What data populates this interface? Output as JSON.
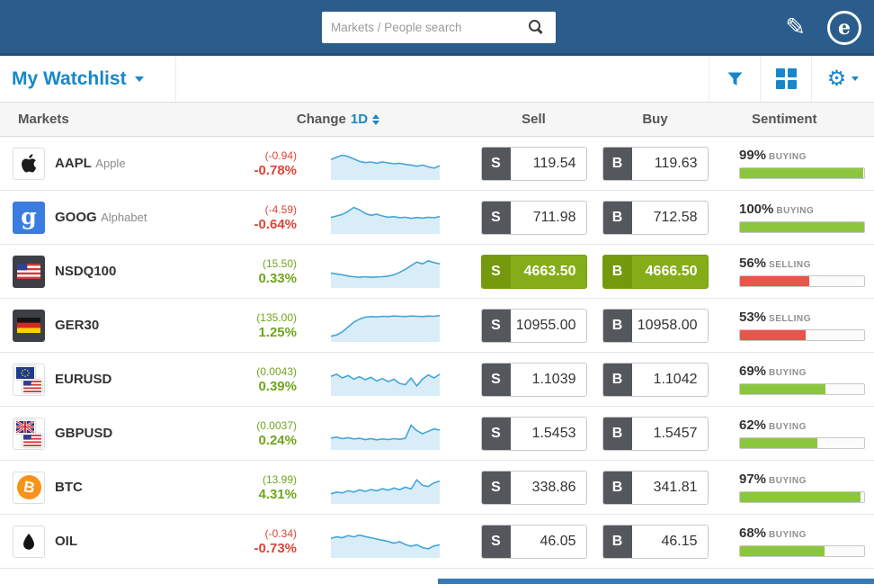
{
  "topbar": {
    "search_placeholder": "Markets / People search",
    "logo_letter": "e",
    "pencil_icon": "✎"
  },
  "toolbar": {
    "title": "My Watchlist"
  },
  "table": {
    "columns": {
      "markets": "Markets",
      "change": "Change",
      "period": "1D",
      "sell": "Sell",
      "buy": "Buy",
      "sentiment": "Sentiment"
    },
    "sell_tag": "S",
    "buy_tag": "B"
  },
  "colors": {
    "topbar_blue": "#2b5d8c",
    "accent_blue": "#1787c9",
    "green_text": "#6fa61c",
    "red_text": "#df4436",
    "trade_green": "#85ad18",
    "sentiment_green": "#8cc63e",
    "sentiment_red": "#e8554a",
    "spark_line": "#44a5d9",
    "spark_fill": "#d9edf8"
  },
  "rows": [
    {
      "symbol": "AAPL",
      "name": "Apple",
      "icon": "apple",
      "change_abs": "(-0.94)",
      "change_pct": "-0.78%",
      "trend": "down",
      "sell": "119.54",
      "buy": "119.63",
      "highlight": false,
      "sentiment": {
        "pct": "99%",
        "label": "BUYING",
        "value": 99,
        "type": "buying"
      },
      "spark": [
        58,
        66,
        72,
        68,
        60,
        52,
        48,
        50,
        46,
        50,
        47,
        44,
        46,
        42,
        40,
        36,
        40,
        34,
        30,
        38
      ]
    },
    {
      "symbol": "GOOG",
      "name": "Alphabet",
      "icon": "google",
      "change_abs": "(-4.59)",
      "change_pct": "-0.64%",
      "trend": "down",
      "sell": "711.98",
      "buy": "712.58",
      "highlight": false,
      "sentiment": {
        "pct": "100%",
        "label": "BUYING",
        "value": 100,
        "type": "buying"
      },
      "spark": [
        45,
        50,
        55,
        65,
        78,
        70,
        58,
        52,
        56,
        50,
        46,
        48,
        44,
        46,
        42,
        45,
        43,
        46,
        44,
        48
      ]
    },
    {
      "symbol": "NSDQ100",
      "name": "",
      "icon": "us_framed",
      "change_abs": "(15.50)",
      "change_pct": "0.33%",
      "trend": "up",
      "sell": "4663.50",
      "buy": "4666.50",
      "highlight": true,
      "sentiment": {
        "pct": "56%",
        "label": "SELLING",
        "value": 56,
        "type": "selling"
      },
      "spark": [
        40,
        37,
        34,
        30,
        28,
        26,
        28,
        26,
        27,
        28,
        30,
        34,
        42,
        52,
        64,
        76,
        70,
        80,
        74,
        70
      ]
    },
    {
      "symbol": "GER30",
      "name": "",
      "icon": "de_framed",
      "change_abs": "(135.00)",
      "change_pct": "1.25%",
      "trend": "up",
      "sell": "10955.00",
      "buy": "10958.00",
      "highlight": false,
      "sentiment": {
        "pct": "53%",
        "label": "SELLING",
        "value": 53,
        "type": "selling"
      },
      "spark": [
        10,
        14,
        24,
        40,
        56,
        66,
        72,
        74,
        73,
        75,
        74,
        76,
        75,
        74,
        76,
        75,
        74,
        76,
        75,
        77
      ]
    },
    {
      "symbol": "EURUSD",
      "name": "",
      "icon": "eu_us",
      "change_abs": "(0.0043)",
      "change_pct": "0.39%",
      "trend": "up",
      "sell": "1.1039",
      "buy": "1.1042",
      "highlight": false,
      "sentiment": {
        "pct": "69%",
        "label": "BUYING",
        "value": 69,
        "type": "buying"
      },
      "spark": [
        55,
        62,
        50,
        58,
        46,
        54,
        44,
        52,
        40,
        48,
        38,
        46,
        32,
        28,
        50,
        24,
        46,
        60,
        50,
        62
      ]
    },
    {
      "symbol": "GBPUSD",
      "name": "",
      "icon": "gb_us",
      "change_abs": "(0.0037)",
      "change_pct": "0.24%",
      "trend": "up",
      "sell": "1.5453",
      "buy": "1.5457",
      "highlight": false,
      "sentiment": {
        "pct": "62%",
        "label": "BUYING",
        "value": 62,
        "type": "buying"
      },
      "spark": [
        30,
        33,
        28,
        31,
        27,
        29,
        25,
        28,
        24,
        27,
        25,
        28,
        26,
        29,
        72,
        54,
        44,
        52,
        60,
        56
      ]
    },
    {
      "symbol": "BTC",
      "name": "",
      "icon": "btc",
      "change_abs": "(13.99)",
      "change_pct": "4.31%",
      "trend": "up",
      "sell": "338.86",
      "buy": "341.81",
      "highlight": false,
      "sentiment": {
        "pct": "97%",
        "label": "BUYING",
        "value": 97,
        "type": "buying"
      },
      "spark": [
        24,
        30,
        27,
        34,
        30,
        37,
        32,
        38,
        34,
        41,
        36,
        43,
        38,
        46,
        40,
        70,
        52,
        48,
        60,
        66
      ]
    },
    {
      "symbol": "OIL",
      "name": "",
      "icon": "oil",
      "change_abs": "(-0.34)",
      "change_pct": "-0.73%",
      "trend": "down",
      "sell": "46.05",
      "buy": "46.15",
      "highlight": false,
      "sentiment": {
        "pct": "68%",
        "label": "BUYING",
        "value": 68,
        "type": "buying"
      },
      "spark": [
        55,
        60,
        57,
        64,
        60,
        66,
        61,
        57,
        53,
        49,
        45,
        39,
        44,
        35,
        29,
        34,
        25,
        21,
        30,
        34
      ]
    }
  ]
}
